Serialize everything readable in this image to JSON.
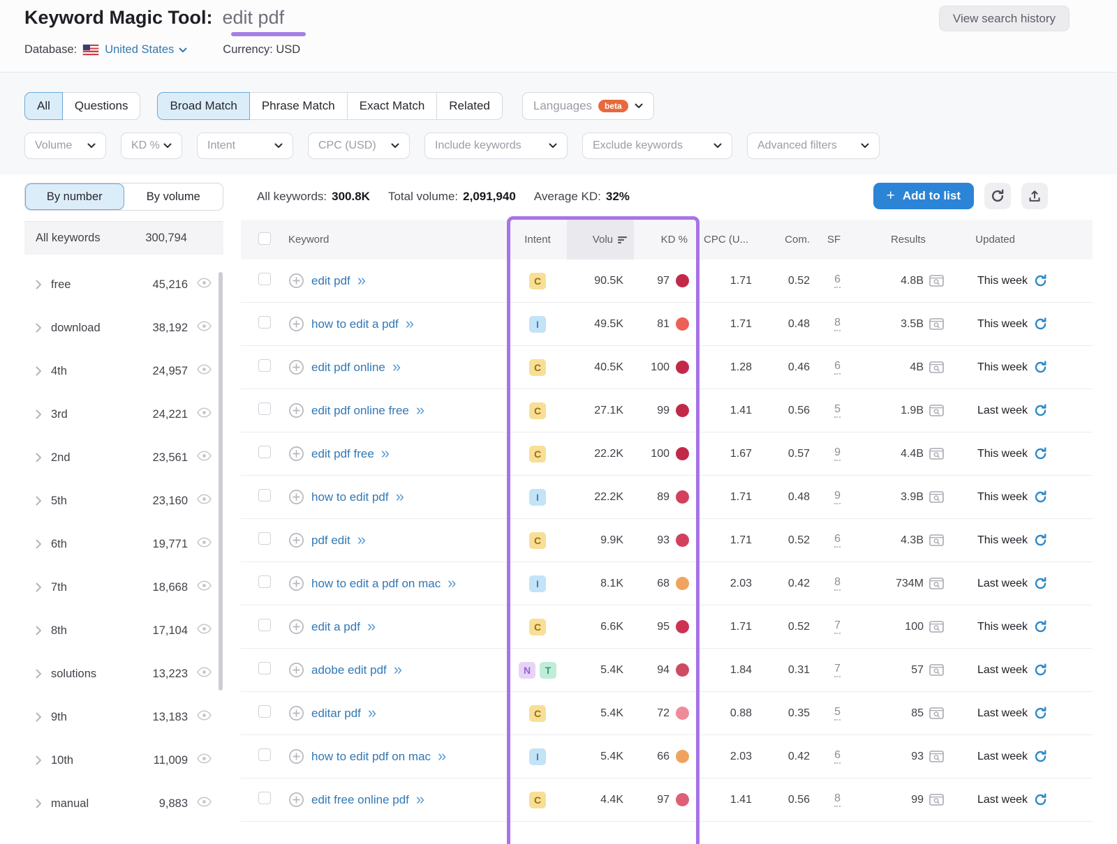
{
  "header": {
    "title": "Keyword Magic Tool:",
    "query": "edit pdf",
    "view_history": "View search history",
    "database_label": "Database:",
    "database_value": "United States",
    "currency": "Currency: USD"
  },
  "tabs": {
    "group1": [
      {
        "label": "All",
        "active": true
      },
      {
        "label": "Questions",
        "active": false
      }
    ],
    "group2": [
      {
        "label": "Broad Match",
        "active": true
      },
      {
        "label": "Phrase Match",
        "active": false
      },
      {
        "label": "Exact Match",
        "active": false
      },
      {
        "label": "Related",
        "active": false
      }
    ],
    "languages": {
      "label": "Languages",
      "badge": "beta"
    }
  },
  "filters": [
    "Volume",
    "KD %",
    "Intent",
    "CPC (USD)",
    "Include keywords",
    "Exclude keywords",
    "Advanced filters"
  ],
  "sidebar": {
    "toggle": [
      {
        "label": "By number",
        "active": true
      },
      {
        "label": "By volume",
        "active": false
      }
    ],
    "all_label": "All keywords",
    "all_count": "300,794",
    "groups": [
      {
        "label": "free",
        "count": "45,216"
      },
      {
        "label": "download",
        "count": "38,192"
      },
      {
        "label": "4th",
        "count": "24,957"
      },
      {
        "label": "3rd",
        "count": "24,221"
      },
      {
        "label": "2nd",
        "count": "23,561"
      },
      {
        "label": "5th",
        "count": "23,160"
      },
      {
        "label": "6th",
        "count": "19,771"
      },
      {
        "label": "7th",
        "count": "18,668"
      },
      {
        "label": "8th",
        "count": "17,104"
      },
      {
        "label": "solutions",
        "count": "13,223"
      },
      {
        "label": "9th",
        "count": "13,183"
      },
      {
        "label": "10th",
        "count": "11,009"
      },
      {
        "label": "manual",
        "count": "9,883"
      }
    ]
  },
  "toolbar": {
    "stats": [
      {
        "label": "All keywords:",
        "value": "300.8K"
      },
      {
        "label": "Total volume:",
        "value": "2,091,940"
      },
      {
        "label": "Average KD:",
        "value": "32%"
      }
    ],
    "add_to_list": "Add to list"
  },
  "table": {
    "columns": {
      "keyword": "Keyword",
      "intent": "Intent",
      "volume": "Volu",
      "kd": "KD %",
      "cpc": "CPC (U...",
      "com": "Com.",
      "sf": "SF",
      "results": "Results",
      "updated": "Updated"
    },
    "intent_colors": {
      "C": {
        "bg": "#f7df97",
        "fg": "#9c6f07"
      },
      "I": {
        "bg": "#c3e3f7",
        "fg": "#3b82ba"
      },
      "N": {
        "bg": "#e6d4f7",
        "fg": "#9a5fd6"
      },
      "T": {
        "bg": "#c0ecd9",
        "fg": "#27a077"
      }
    },
    "rows": [
      {
        "keyword": "edit pdf",
        "intents": [
          "C"
        ],
        "volume": "90.5K",
        "kd": "97",
        "kd_color": "#c22949",
        "cpc": "1.71",
        "com": "0.52",
        "sf": "6",
        "results": "4.8B",
        "updated": "This week"
      },
      {
        "keyword": "how to edit a pdf",
        "intents": [
          "I"
        ],
        "volume": "49.5K",
        "kd": "81",
        "kd_color": "#ec6058",
        "cpc": "1.71",
        "com": "0.48",
        "sf": "8",
        "results": "3.5B",
        "updated": "This week"
      },
      {
        "keyword": "edit pdf online",
        "intents": [
          "C"
        ],
        "volume": "40.5K",
        "kd": "100",
        "kd_color": "#c22949",
        "cpc": "1.28",
        "com": "0.46",
        "sf": "6",
        "results": "4B",
        "updated": "This week"
      },
      {
        "keyword": "edit pdf online free",
        "intents": [
          "C"
        ],
        "volume": "27.1K",
        "kd": "99",
        "kd_color": "#c22949",
        "cpc": "1.41",
        "com": "0.56",
        "sf": "5",
        "results": "1.9B",
        "updated": "Last week"
      },
      {
        "keyword": "edit pdf free",
        "intents": [
          "C"
        ],
        "volume": "22.2K",
        "kd": "100",
        "kd_color": "#c22949",
        "cpc": "1.67",
        "com": "0.57",
        "sf": "9",
        "results": "4.4B",
        "updated": "This week"
      },
      {
        "keyword": "how to edit pdf",
        "intents": [
          "I"
        ],
        "volume": "22.2K",
        "kd": "89",
        "kd_color": "#d2405c",
        "cpc": "1.71",
        "com": "0.48",
        "sf": "9",
        "results": "3.9B",
        "updated": "This week"
      },
      {
        "keyword": "pdf edit",
        "intents": [
          "C"
        ],
        "volume": "9.9K",
        "kd": "93",
        "kd_color": "#d2405c",
        "cpc": "1.71",
        "com": "0.52",
        "sf": "6",
        "results": "4.3B",
        "updated": "This week"
      },
      {
        "keyword": "how to edit a pdf on mac",
        "intents": [
          "I"
        ],
        "volume": "8.1K",
        "kd": "68",
        "kd_color": "#f0a35e",
        "cpc": "2.03",
        "com": "0.42",
        "sf": "8",
        "results": "734M",
        "updated": "Last week"
      },
      {
        "keyword": "edit a pdf",
        "intents": [
          "C"
        ],
        "volume": "6.6K",
        "kd": "95",
        "kd_color": "#cc3351",
        "cpc": "1.71",
        "com": "0.52",
        "sf": "7",
        "results": "100",
        "updated": "This week"
      },
      {
        "keyword": "adobe edit pdf",
        "intents": [
          "N",
          "T"
        ],
        "volume": "5.4K",
        "kd": "94",
        "kd_color": "#d04a62",
        "cpc": "1.84",
        "com": "0.31",
        "sf": "7",
        "results": "57",
        "updated": "Last week"
      },
      {
        "keyword": "editar pdf",
        "intents": [
          "C"
        ],
        "volume": "5.4K",
        "kd": "72",
        "kd_color": "#ef8b99",
        "cpc": "0.88",
        "com": "0.35",
        "sf": "5",
        "results": "85",
        "updated": "Last week"
      },
      {
        "keyword": "how to edit pdf on mac",
        "intents": [
          "I"
        ],
        "volume": "5.4K",
        "kd": "66",
        "kd_color": "#f0a35e",
        "cpc": "2.03",
        "com": "0.42",
        "sf": "6",
        "results": "93",
        "updated": "Last week"
      },
      {
        "keyword": "edit free online pdf",
        "intents": [
          "C"
        ],
        "volume": "4.4K",
        "kd": "97",
        "kd_color": "#dd6076",
        "cpc": "1.41",
        "com": "0.56",
        "sf": "8",
        "results": "99",
        "updated": "Last week"
      }
    ]
  },
  "accent_colors": {
    "annotation_purple": "#a873e8",
    "primary_blue": "#2b84d6",
    "link_blue": "#3178b5"
  }
}
